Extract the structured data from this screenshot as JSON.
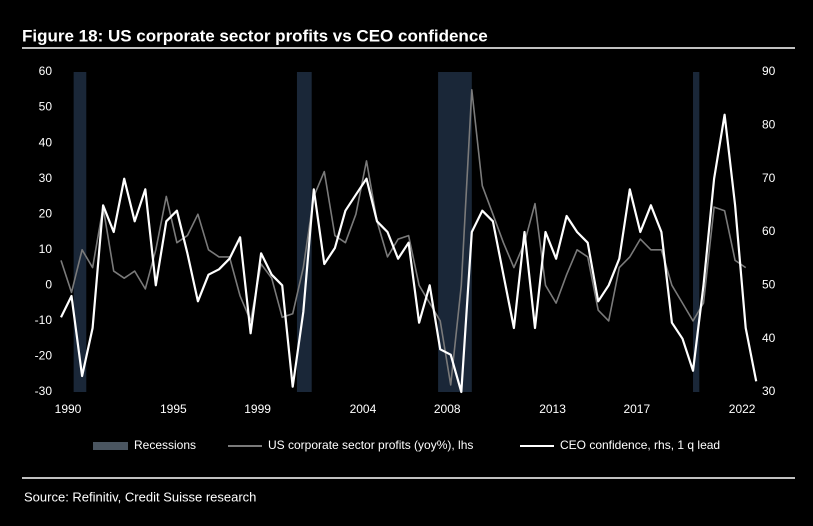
{
  "chart_data": {
    "type": "line",
    "title": "Figure 18: US corporate sector profits vs CEO confidence",
    "source": "Source: Refinitiv, Credit Suisse research",
    "x": [
      1990,
      1990.5,
      1991,
      1991.5,
      1992,
      1992.5,
      1993,
      1993.5,
      1994,
      1994.5,
      1995,
      1995.5,
      1996,
      1996.5,
      1997,
      1997.5,
      1998,
      1998.5,
      1999,
      1999.5,
      2000,
      2000.5,
      2001,
      2001.5,
      2002,
      2002.5,
      2003,
      2003.5,
      2004,
      2004.5,
      2005,
      2005.5,
      2006,
      2006.5,
      2007,
      2007.5,
      2008,
      2008.5,
      2009,
      2009.5,
      2010,
      2010.5,
      2011,
      2011.5,
      2012,
      2012.5,
      2013,
      2013.5,
      2014,
      2014.5,
      2015,
      2015.5,
      2016,
      2016.5,
      2017,
      2017.5,
      2018,
      2018.5,
      2019,
      2019.5,
      2020,
      2020.5,
      2021,
      2021.5,
      2022,
      2022.5,
      2023
    ],
    "xlim": [
      1990,
      2022.8
    ],
    "xticks": [
      1990,
      1995,
      1999,
      2004,
      2008,
      2013,
      2017,
      2022
    ],
    "ylim": [
      -30,
      60
    ],
    "yticks": [
      -30,
      -20,
      -10,
      0,
      10,
      20,
      30,
      40,
      50,
      60
    ],
    "y2lim": [
      30,
      90
    ],
    "y2ticks": [
      30,
      40,
      50,
      60,
      70,
      80,
      90
    ],
    "recessions": {
      "name": "Recessions",
      "color": "#1a2738",
      "periods": [
        [
          1990.6,
          1991.2
        ],
        [
          2001.2,
          2001.9
        ],
        [
          2007.9,
          2009.5
        ],
        [
          2020.0,
          2020.3
        ]
      ]
    },
    "series": [
      {
        "name": "US corporate sector profits (yoy%), lhs",
        "color": "#7a7a7a",
        "axis": "y",
        "values": [
          7,
          -2,
          10,
          5,
          22,
          4,
          2,
          4,
          -1,
          10,
          25,
          12,
          14,
          20,
          10,
          8,
          8,
          -3,
          -10,
          6,
          2,
          -9,
          -8,
          5,
          25,
          32,
          14,
          12,
          20,
          35,
          18,
          8,
          13,
          14,
          0,
          -5,
          -10,
          -28,
          0,
          55,
          28,
          20,
          12,
          5,
          12,
          23,
          0,
          -5,
          3,
          10,
          8,
          -7,
          -10,
          5,
          8,
          13,
          10,
          10,
          0,
          -5,
          -10,
          -5,
          22,
          21,
          7,
          5,
          null
        ]
      },
      {
        "name": "CEO confidence, rhs, 1 q lead",
        "color": "#ffffff",
        "axis": "y2",
        "values": [
          44,
          48,
          33,
          42,
          65,
          60,
          70,
          62,
          68,
          50,
          62,
          64,
          56,
          47,
          52,
          53,
          55,
          59,
          41,
          56,
          52,
          50,
          31,
          45,
          68,
          54,
          57,
          64,
          67,
          70,
          62,
          60,
          55,
          58,
          43,
          50,
          38,
          37,
          30,
          60,
          64,
          62,
          52,
          42,
          60,
          42,
          60,
          55,
          63,
          60,
          58,
          47,
          50,
          55,
          68,
          60,
          65,
          60,
          43,
          40,
          34,
          50,
          70,
          82,
          65,
          42,
          32
        ]
      }
    ]
  }
}
